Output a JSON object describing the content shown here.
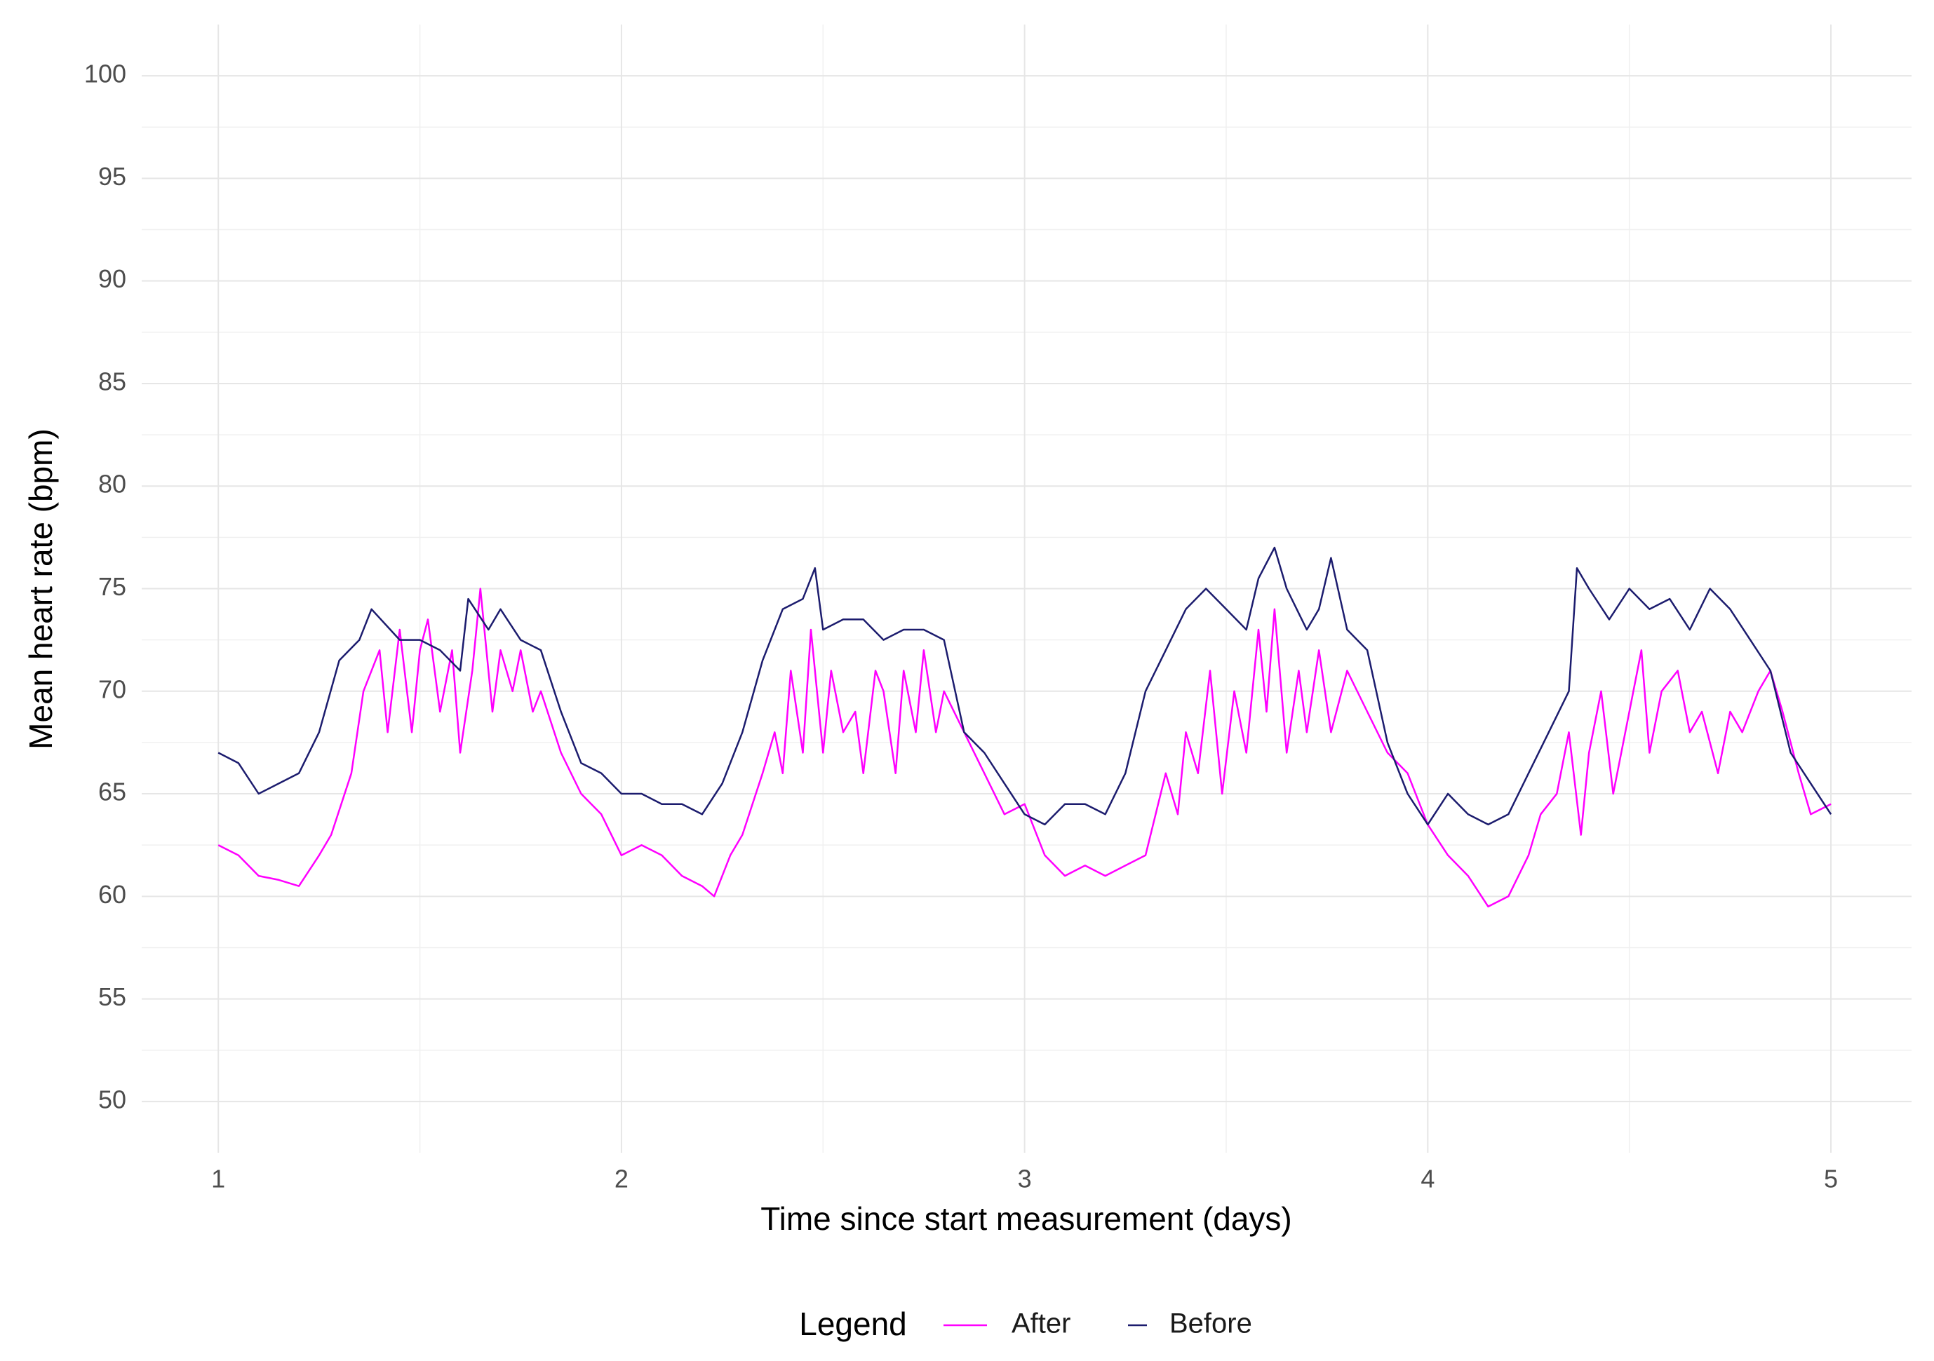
{
  "chart_data": {
    "type": "line",
    "xlabel": "Time since start measurement (days)",
    "ylabel": "Mean heart rate (bpm)",
    "legend_title": "Legend",
    "legend": "bottom",
    "grid": true,
    "xlim": [
      0.81,
      5.2
    ],
    "ylim": [
      47.5,
      102.5
    ],
    "xticks": [
      1,
      2,
      3,
      4,
      5
    ],
    "yticks": [
      50,
      55,
      60,
      65,
      70,
      75,
      80,
      85,
      90,
      95,
      100
    ],
    "series": [
      {
        "name": "After",
        "color": "#ff00ff",
        "x": [
          1.0,
          1.05,
          1.1,
          1.15,
          1.2,
          1.25,
          1.28,
          1.33,
          1.36,
          1.4,
          1.42,
          1.45,
          1.48,
          1.5,
          1.52,
          1.55,
          1.58,
          1.6,
          1.63,
          1.65,
          1.68,
          1.7,
          1.73,
          1.75,
          1.78,
          1.8,
          1.85,
          1.9,
          1.95,
          2.0,
          2.05,
          2.1,
          2.15,
          2.2,
          2.23,
          2.27,
          2.3,
          2.35,
          2.38,
          2.4,
          2.42,
          2.45,
          2.47,
          2.5,
          2.52,
          2.55,
          2.58,
          2.6,
          2.63,
          2.65,
          2.68,
          2.7,
          2.73,
          2.75,
          2.78,
          2.8,
          2.85,
          2.9,
          2.95,
          3.0,
          3.05,
          3.1,
          3.15,
          3.2,
          3.25,
          3.3,
          3.35,
          3.38,
          3.4,
          3.43,
          3.46,
          3.49,
          3.52,
          3.55,
          3.58,
          3.6,
          3.62,
          3.65,
          3.68,
          3.7,
          3.73,
          3.76,
          3.8,
          3.85,
          3.9,
          3.95,
          4.0,
          4.05,
          4.1,
          4.15,
          4.2,
          4.25,
          4.28,
          4.32,
          4.35,
          4.38,
          4.4,
          4.43,
          4.46,
          4.5,
          4.53,
          4.55,
          4.58,
          4.62,
          4.65,
          4.68,
          4.72,
          4.75,
          4.78,
          4.82,
          4.85,
          4.88,
          4.92,
          4.95,
          5.0
        ],
        "values": [
          62.5,
          62,
          61,
          60.8,
          60.5,
          62,
          63,
          66,
          70,
          72,
          68,
          73,
          68,
          72,
          73.5,
          69,
          72,
          67,
          71,
          75,
          69,
          72,
          70,
          72,
          69,
          70,
          67,
          65,
          64,
          62,
          62.5,
          62,
          61,
          60.5,
          60,
          62,
          63,
          66,
          68,
          66,
          71,
          67,
          73,
          67,
          71,
          68,
          69,
          66,
          71,
          70,
          66,
          71,
          68,
          72,
          68,
          70,
          68,
          66,
          64,
          64.5,
          62,
          61,
          61.5,
          61,
          61.5,
          62,
          66,
          64,
          68,
          66,
          71,
          65,
          70,
          67,
          73,
          69,
          74,
          67,
          71,
          68,
          72,
          68,
          71,
          69,
          67,
          66,
          63.5,
          62,
          61,
          59.5,
          60,
          62,
          64,
          65,
          68,
          63,
          67,
          70,
          65,
          69,
          72,
          67,
          70,
          71,
          68,
          69,
          66,
          69,
          68,
          70,
          71,
          69,
          66,
          64,
          64.5
        ]
      },
      {
        "name": "Before",
        "color": "#1c1c6e",
        "x": [
          1.0,
          1.05,
          1.1,
          1.15,
          1.2,
          1.25,
          1.3,
          1.35,
          1.38,
          1.45,
          1.5,
          1.55,
          1.6,
          1.62,
          1.67,
          1.7,
          1.75,
          1.8,
          1.85,
          1.9,
          1.95,
          2.0,
          2.05,
          2.1,
          2.15,
          2.2,
          2.25,
          2.3,
          2.35,
          2.4,
          2.45,
          2.48,
          2.5,
          2.55,
          2.6,
          2.65,
          2.7,
          2.75,
          2.8,
          2.85,
          2.9,
          2.95,
          3.0,
          3.05,
          3.1,
          3.15,
          3.2,
          3.25,
          3.3,
          3.35,
          3.4,
          3.45,
          3.5,
          3.55,
          3.58,
          3.62,
          3.65,
          3.7,
          3.73,
          3.76,
          3.8,
          3.85,
          3.9,
          3.95,
          4.0,
          4.05,
          4.1,
          4.15,
          4.2,
          4.25,
          4.3,
          4.35,
          4.37,
          4.4,
          4.45,
          4.5,
          4.55,
          4.6,
          4.65,
          4.7,
          4.75,
          4.8,
          4.85,
          4.9,
          4.95,
          5.0
        ],
        "values": [
          67,
          66.5,
          65,
          65.5,
          66,
          68,
          71.5,
          72.5,
          74,
          72.5,
          72.5,
          72,
          71,
          74.5,
          73,
          74,
          72.5,
          72,
          69,
          66.5,
          66,
          65,
          65,
          64.5,
          64.5,
          64,
          65.5,
          68,
          71.5,
          74,
          74.5,
          76,
          73,
          73.5,
          73.5,
          72.5,
          73,
          73,
          72.5,
          68,
          67,
          65.5,
          64,
          63.5,
          64.5,
          64.5,
          64,
          66,
          70,
          72,
          74,
          75,
          74,
          73,
          75.5,
          77,
          75,
          73,
          74,
          76.5,
          73,
          72,
          67.5,
          65,
          63.5,
          65,
          64,
          63.5,
          64,
          66,
          68,
          70,
          76,
          75,
          73.5,
          75,
          74,
          74.5,
          73,
          75,
          74,
          72.5,
          71,
          67,
          65.5,
          64
        ]
      }
    ]
  }
}
